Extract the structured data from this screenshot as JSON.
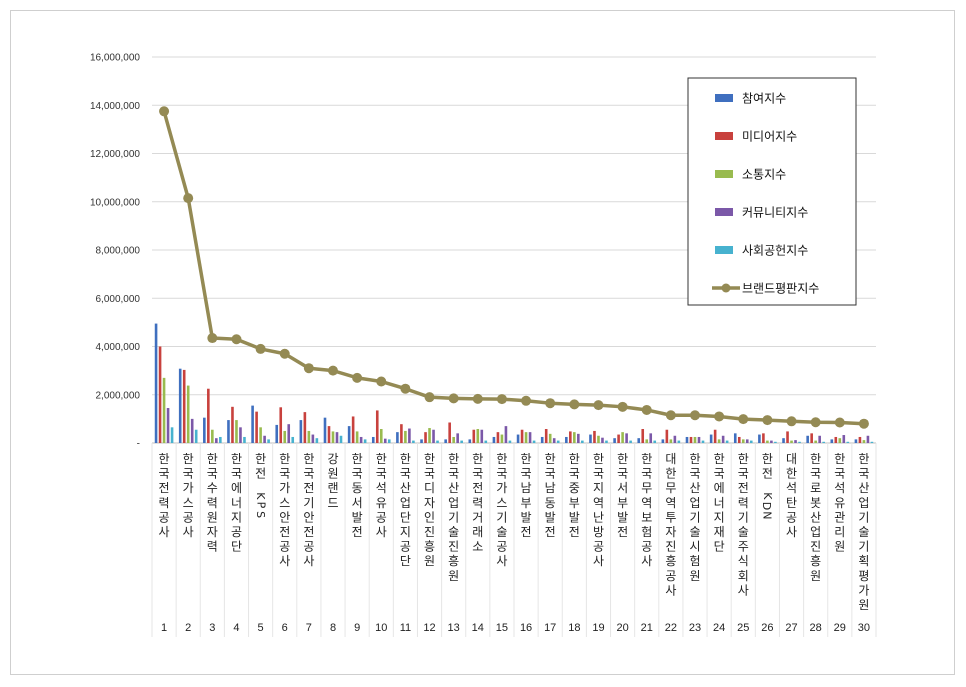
{
  "chart_data": {
    "type": "bar",
    "title": "",
    "xlabel": "",
    "ylabel": "",
    "ylim": [
      0,
      16000000
    ],
    "yticks": [
      "-",
      "2,000,000",
      "4,000,000",
      "6,000,000",
      "8,000,000",
      "10,000,000",
      "12,000,000",
      "14,000,000",
      "16,000,000"
    ],
    "ytick_values": [
      0,
      2000000,
      4000000,
      6000000,
      8000000,
      10000000,
      12000000,
      14000000,
      16000000
    ],
    "legend_position": "top-right",
    "ranks": [
      "1",
      "2",
      "3",
      "4",
      "5",
      "6",
      "7",
      "8",
      "9",
      "10",
      "11",
      "12",
      "13",
      "14",
      "15",
      "16",
      "17",
      "18",
      "19",
      "20",
      "21",
      "22",
      "23",
      "24",
      "25",
      "26",
      "27",
      "28",
      "29",
      "30"
    ],
    "categories": [
      "한국전력공사",
      "한국가스공사",
      "한국수력원자력",
      "한국에너지공단",
      "한전KPS",
      "한국가스안전공사",
      "한국전기안전공사",
      "강원랜드",
      "한국동서발전",
      "한국석유공사",
      "한국산업단지공단",
      "한국디자인진흥원",
      "한국산업기술진흥원",
      "한국전력거래소",
      "한국가스기술공사",
      "한국남부발전",
      "한국남동발전",
      "한국중부발전",
      "한국지역난방공사",
      "한국서부발전",
      "한국무역보험공사",
      "대한무역투자진흥공사",
      "한국산업기술시험원",
      "한국에너지재단",
      "한국전력기술주식회사",
      "한전KDN",
      "대한석탄공사",
      "한국로봇산업진흥원",
      "한국석유관리원",
      "한국산업기술기획평가원"
    ],
    "series": [
      {
        "name": "참여지수",
        "color": "#3f6fbf",
        "values": [
          4950000,
          3080000,
          1050000,
          950000,
          1550000,
          750000,
          950000,
          1050000,
          700000,
          250000,
          450000,
          150000,
          150000,
          150000,
          250000,
          350000,
          250000,
          250000,
          350000,
          200000,
          200000,
          150000,
          250000,
          350000,
          400000,
          350000,
          200000,
          300000,
          150000,
          150000
        ]
      },
      {
        "name": "미디어지수",
        "color": "#c8413d",
        "values": [
          4000000,
          3030000,
          2250000,
          1500000,
          1300000,
          1480000,
          1280000,
          700000,
          1100000,
          1350000,
          780000,
          450000,
          850000,
          550000,
          450000,
          550000,
          580000,
          480000,
          500000,
          350000,
          580000,
          550000,
          250000,
          550000,
          250000,
          400000,
          480000,
          400000,
          250000,
          250000
        ]
      },
      {
        "name": "소통지수",
        "color": "#99bb4f",
        "values": [
          2700000,
          2380000,
          550000,
          950000,
          650000,
          500000,
          500000,
          480000,
          480000,
          580000,
          500000,
          620000,
          250000,
          580000,
          350000,
          450000,
          380000,
          450000,
          300000,
          450000,
          150000,
          150000,
          250000,
          150000,
          150000,
          100000,
          100000,
          100000,
          200000,
          120000
        ]
      },
      {
        "name": "커뮤니티지수",
        "color": "#7b58a8",
        "values": [
          1450000,
          1000000,
          200000,
          650000,
          300000,
          780000,
          350000,
          450000,
          250000,
          180000,
          600000,
          550000,
          400000,
          550000,
          700000,
          450000,
          200000,
          380000,
          220000,
          400000,
          400000,
          300000,
          250000,
          300000,
          150000,
          100000,
          120000,
          300000,
          330000,
          300000
        ]
      },
      {
        "name": "사회공헌지수",
        "color": "#47b2cf",
        "values": [
          650000,
          550000,
          250000,
          250000,
          150000,
          250000,
          200000,
          300000,
          150000,
          150000,
          100000,
          100000,
          100000,
          100000,
          100000,
          100000,
          100000,
          100000,
          100000,
          100000,
          100000,
          100000,
          100000,
          100000,
          100000,
          50000,
          50000,
          50000,
          50000,
          50000
        ]
      },
      {
        "name": "브랜드평판지수",
        "color": "#948a54",
        "type": "line",
        "values": [
          13750000,
          10150000,
          4350000,
          4300000,
          3900000,
          3700000,
          3100000,
          3000000,
          2700000,
          2550000,
          2250000,
          1900000,
          1850000,
          1830000,
          1820000,
          1750000,
          1650000,
          1600000,
          1570000,
          1500000,
          1370000,
          1150000,
          1150000,
          1100000,
          990000,
          950000,
          900000,
          860000,
          850000,
          800000
        ]
      }
    ]
  }
}
